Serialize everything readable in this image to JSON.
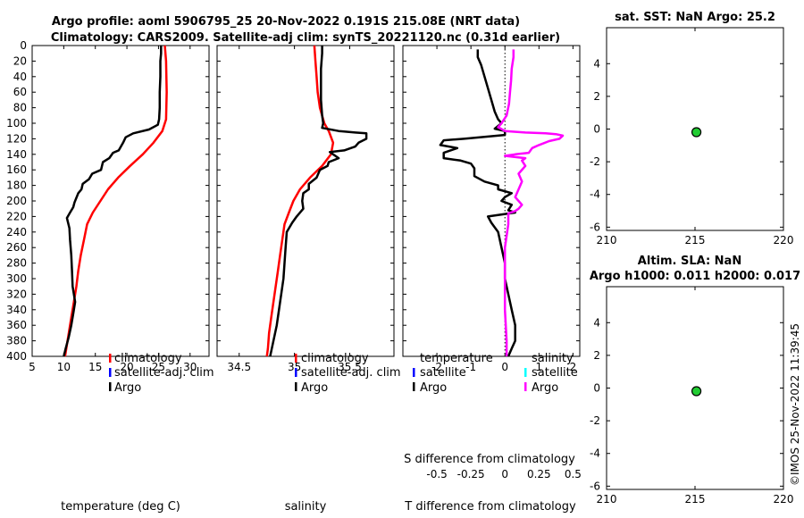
{
  "title_line1": "Argo profile: aoml 5906795_25 20-Nov-2022 0.191S 215.08E (NRT data)",
  "title_line2": "Climatology: CARS2009. Satellite-adj clim: synTS_20221120.nc (0.31d earlier)",
  "sst_title": "sat. SST: NaN Argo: 25.2",
  "sla_title1": "Altim. SLA: NaN",
  "sla_title2": "Argo h1000: 0.011 h2000: 0.017",
  "timestamp": "©IMOS 25-Nov-2022 11:39:45",
  "colors": {
    "climatology": "#ff0000",
    "satellite_adj": "#0000ff",
    "argo": "#000000",
    "argo_salinity_diff": "#ff00ff",
    "satellite_salinity": "#00ffff",
    "marker": "#22cc33"
  },
  "legends": {
    "temperature": [
      "climatology",
      "satellite-adj. clim",
      "Argo"
    ],
    "salinity": [
      "climatology",
      "satellite-adj. clim",
      "Argo"
    ],
    "diff_temp_header": "temperature",
    "diff_sal_header": "salinity",
    "diff_temp": [
      "satellite",
      "Argo"
    ],
    "diff_sal": [
      "satellite",
      "Argo"
    ]
  },
  "chart_data": [
    {
      "type": "line",
      "id": "temperature",
      "xlabel": "temperature (deg C)",
      "xlim": [
        5,
        33
      ],
      "xticks": [
        "5",
        "10",
        "15",
        "20",
        "25",
        "30"
      ],
      "ylim": [
        0,
        400
      ],
      "yticks": [
        "0",
        "20",
        "40",
        "60",
        "80",
        "100",
        "120",
        "140",
        "160",
        "180",
        "200",
        "220",
        "240",
        "260",
        "280",
        "300",
        "320",
        "340",
        "360",
        "380",
        "400"
      ],
      "series": [
        {
          "name": "climatology",
          "points": [
            [
              26.0,
              0
            ],
            [
              26.2,
              20
            ],
            [
              26.3,
              60
            ],
            [
              26.2,
              95
            ],
            [
              25.6,
              110
            ],
            [
              24.2,
              125
            ],
            [
              22.5,
              140
            ],
            [
              20.5,
              155
            ],
            [
              18.6,
              170
            ],
            [
              17.0,
              185
            ],
            [
              15.8,
              200
            ],
            [
              14.6,
              215
            ],
            [
              13.7,
              230
            ],
            [
              13.2,
              250
            ],
            [
              12.7,
              270
            ],
            [
              12.3,
              290
            ],
            [
              12.0,
              310
            ],
            [
              11.6,
              330
            ],
            [
              11.2,
              350
            ],
            [
              10.8,
              370
            ],
            [
              10.5,
              385
            ],
            [
              10.2,
              400
            ]
          ]
        },
        {
          "name": "Argo",
          "points": [
            [
              25.4,
              0
            ],
            [
              25.4,
              10
            ],
            [
              25.3,
              20
            ],
            [
              25.3,
              40
            ],
            [
              25.2,
              60
            ],
            [
              25.2,
              80
            ],
            [
              25.1,
              95
            ],
            [
              24.9,
              102
            ],
            [
              23.5,
              108
            ],
            [
              21.0,
              113
            ],
            [
              19.8,
              118
            ],
            [
              19.4,
              125
            ],
            [
              18.7,
              135
            ],
            [
              17.8,
              138
            ],
            [
              17.2,
              145
            ],
            [
              16.2,
              150
            ],
            [
              15.9,
              160
            ],
            [
              14.5,
              165
            ],
            [
              14.0,
              172
            ],
            [
              13.0,
              178
            ],
            [
              12.8,
              185
            ],
            [
              12.3,
              190
            ],
            [
              12.0,
              196
            ],
            [
              11.7,
              202
            ],
            [
              11.5,
              208
            ],
            [
              11.0,
              215
            ],
            [
              10.5,
              222
            ],
            [
              10.9,
              235
            ],
            [
              11.0,
              250
            ],
            [
              11.2,
              270
            ],
            [
              11.3,
              290
            ],
            [
              11.4,
              310
            ],
            [
              11.8,
              330
            ],
            [
              11.5,
              345
            ],
            [
              11.2,
              360
            ],
            [
              10.8,
              375
            ],
            [
              10.3,
              390
            ],
            [
              10.0,
              400
            ]
          ]
        }
      ]
    },
    {
      "type": "line",
      "id": "salinity",
      "xlabel": "salinity",
      "xlim": [
        34.3,
        35.9
      ],
      "xticks": [
        "34.5",
        "35",
        "35.5"
      ],
      "xtick_values": [
        34.5,
        35.0,
        35.5
      ],
      "ylim": [
        0,
        400
      ],
      "series": [
        {
          "name": "climatology",
          "points": [
            [
              35.18,
              0
            ],
            [
              35.19,
              20
            ],
            [
              35.2,
              40
            ],
            [
              35.21,
              60
            ],
            [
              35.23,
              80
            ],
            [
              35.27,
              100
            ],
            [
              35.31,
              110
            ],
            [
              35.35,
              125
            ],
            [
              35.33,
              140
            ],
            [
              35.25,
              155
            ],
            [
              35.14,
              170
            ],
            [
              35.05,
              185
            ],
            [
              34.99,
              200
            ],
            [
              34.95,
              215
            ],
            [
              34.91,
              230
            ],
            [
              34.89,
              250
            ],
            [
              34.87,
              270
            ],
            [
              34.85,
              290
            ],
            [
              34.83,
              310
            ],
            [
              34.81,
              330
            ],
            [
              34.79,
              350
            ],
            [
              34.77,
              370
            ],
            [
              34.76,
              390
            ],
            [
              34.75,
              400
            ]
          ]
        },
        {
          "name": "Argo",
          "points": [
            [
              35.25,
              0
            ],
            [
              35.25,
              10
            ],
            [
              35.24,
              30
            ],
            [
              35.24,
              50
            ],
            [
              35.24,
              70
            ],
            [
              35.25,
              90
            ],
            [
              35.26,
              100
            ],
            [
              35.25,
              106
            ],
            [
              35.4,
              110
            ],
            [
              35.55,
              112
            ],
            [
              35.65,
              113
            ],
            [
              35.65,
              120
            ],
            [
              35.58,
              125
            ],
            [
              35.55,
              130
            ],
            [
              35.45,
              135
            ],
            [
              35.32,
              137
            ],
            [
              35.4,
              145
            ],
            [
              35.31,
              150
            ],
            [
              35.3,
              155
            ],
            [
              35.23,
              160
            ],
            [
              35.2,
              170
            ],
            [
              35.13,
              178
            ],
            [
              35.13,
              185
            ],
            [
              35.08,
              190
            ],
            [
              35.07,
              200
            ],
            [
              35.08,
              210
            ],
            [
              35.02,
              220
            ],
            [
              34.98,
              228
            ],
            [
              34.93,
              240
            ],
            [
              34.92,
              260
            ],
            [
              34.91,
              280
            ],
            [
              34.9,
              300
            ],
            [
              34.88,
              320
            ],
            [
              34.86,
              340
            ],
            [
              34.84,
              360
            ],
            [
              34.81,
              380
            ],
            [
              34.78,
              400
            ]
          ]
        }
      ]
    },
    {
      "type": "line",
      "id": "difference",
      "xlabel": "T difference from climatology",
      "xlim": [
        -3,
        2.2
      ],
      "xticks": [
        "-2",
        "-1",
        "0",
        "1",
        "2"
      ],
      "xtick_values": [
        -2,
        -1,
        0,
        1,
        2
      ],
      "top_label": "S difference from climatology",
      "top_ticks": [
        "-0.5",
        "-0.25",
        "0",
        "0.25",
        "0.5"
      ],
      "top_tick_positions_T_units": [
        -2,
        -1,
        0,
        1,
        2
      ],
      "ylim": [
        0,
        400
      ],
      "series": [
        {
          "name": "Argo temperature",
          "points": [
            [
              -0.8,
              5
            ],
            [
              -0.8,
              15
            ],
            [
              -0.7,
              25
            ],
            [
              -0.6,
              40
            ],
            [
              -0.5,
              55
            ],
            [
              -0.4,
              70
            ],
            [
              -0.3,
              85
            ],
            [
              -0.2,
              95
            ],
            [
              -0.1,
              100
            ],
            [
              -0.3,
              107
            ],
            [
              0.0,
              110
            ],
            [
              0.0,
              115
            ],
            [
              -1.2,
              120
            ],
            [
              -1.8,
              122
            ],
            [
              -1.9,
              128
            ],
            [
              -1.4,
              132
            ],
            [
              -1.8,
              138
            ],
            [
              -1.8,
              145
            ],
            [
              -1.3,
              148
            ],
            [
              -1.0,
              152
            ],
            [
              -0.9,
              158
            ],
            [
              -0.9,
              168
            ],
            [
              -0.6,
              175
            ],
            [
              -0.2,
              180
            ],
            [
              -0.2,
              185
            ],
            [
              0.2,
              190
            ],
            [
              0.0,
              195
            ],
            [
              -0.1,
              200
            ],
            [
              0.2,
              205
            ],
            [
              0.1,
              212
            ],
            [
              0.3,
              215
            ],
            [
              -0.5,
              220
            ],
            [
              -0.4,
              228
            ],
            [
              -0.2,
              240
            ],
            [
              -0.1,
              260
            ],
            [
              0.0,
              280
            ],
            [
              0.0,
              300
            ],
            [
              0.1,
              320
            ],
            [
              0.2,
              340
            ],
            [
              0.3,
              360
            ],
            [
              0.3,
              380
            ],
            [
              0.2,
              390
            ],
            [
              0.1,
              400
            ]
          ]
        },
        {
          "name": "Argo salinity",
          "points": [
            [
              0.25,
              5
            ],
            [
              0.25,
              15
            ],
            [
              0.2,
              30
            ],
            [
              0.18,
              45
            ],
            [
              0.15,
              60
            ],
            [
              0.12,
              75
            ],
            [
              0.05,
              90
            ],
            [
              -0.1,
              100
            ],
            [
              -0.2,
              105
            ],
            [
              0.0,
              110
            ],
            [
              0.6,
              112
            ],
            [
              1.2,
              113
            ],
            [
              1.5,
              114
            ],
            [
              1.7,
              116
            ],
            [
              1.6,
              120
            ],
            [
              1.3,
              123
            ],
            [
              1.0,
              128
            ],
            [
              0.8,
              132
            ],
            [
              0.7,
              138
            ],
            [
              0.3,
              140
            ],
            [
              0.0,
              142
            ],
            [
              0.6,
              145
            ],
            [
              0.5,
              148
            ],
            [
              0.6,
              155
            ],
            [
              0.4,
              165
            ],
            [
              0.5,
              175
            ],
            [
              0.4,
              185
            ],
            [
              0.3,
              195
            ],
            [
              0.5,
              205
            ],
            [
              0.4,
              210
            ],
            [
              0.3,
              213
            ],
            [
              0.1,
              216
            ],
            [
              0.1,
              230
            ],
            [
              0.0,
              260
            ],
            [
              0.0,
              300
            ],
            [
              0.0,
              340
            ],
            [
              0.05,
              380
            ],
            [
              0.05,
              400
            ]
          ]
        }
      ]
    },
    {
      "type": "scatter",
      "id": "sst",
      "xlim": [
        210,
        220
      ],
      "xticks": [
        "210",
        "215",
        "220"
      ],
      "xtick_values": [
        210,
        215,
        220
      ],
      "ylim": [
        -6.2,
        6.2
      ],
      "yticks": [
        "4",
        "2",
        "0",
        "-2",
        "-4",
        "-6"
      ],
      "ytick_values": [
        4,
        2,
        0,
        -2,
        -4,
        -6
      ],
      "points": [
        [
          215.08,
          -0.19
        ]
      ]
    },
    {
      "type": "scatter",
      "id": "sla",
      "xlim": [
        210,
        220
      ],
      "xticks": [
        "210",
        "215",
        "220"
      ],
      "xtick_values": [
        210,
        215,
        220
      ],
      "ylim": [
        -6.2,
        6.2
      ],
      "yticks": [
        "4",
        "2",
        "0",
        "-2",
        "-4",
        "-6"
      ],
      "ytick_values": [
        4,
        2,
        0,
        -2,
        -4,
        -6
      ],
      "points": [
        [
          215.08,
          -0.19
        ]
      ]
    }
  ]
}
